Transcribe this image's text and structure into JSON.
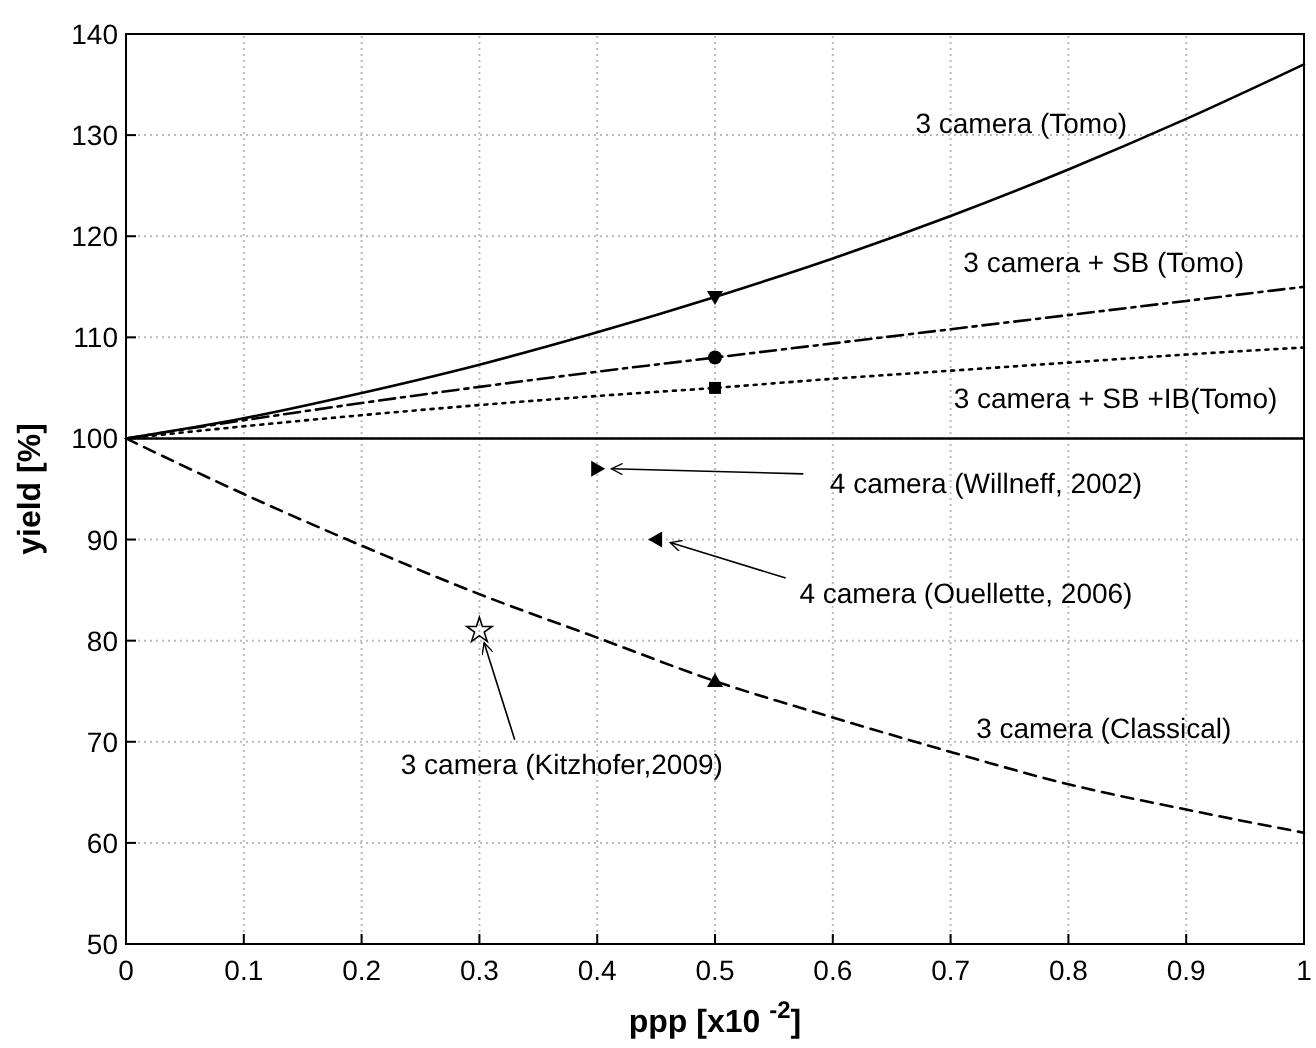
{
  "chart_data": {
    "type": "line",
    "xlabel": "ppp [x10 $^{-2}$]",
    "ylabel": "yield [%]",
    "xlim": [
      0,
      1
    ],
    "xticks": [
      0,
      0.1,
      0.2,
      0.3,
      0.4,
      0.5,
      0.6,
      0.7,
      0.8,
      0.9,
      1
    ],
    "ylim": [
      50,
      140
    ],
    "yticks": [
      50,
      60,
      70,
      80,
      90,
      100,
      110,
      120,
      130,
      140
    ],
    "grid": true,
    "x": [
      0,
      0.1,
      0.2,
      0.3,
      0.4,
      0.5,
      0.6,
      0.7,
      0.8,
      0.9,
      1
    ],
    "series": [
      {
        "name": "3 camera (Tomo)",
        "line_style": "solid",
        "color": "#000000",
        "values": [
          100,
          102,
          104.5,
          107.3,
          110.5,
          114,
          117.8,
          122,
          126.6,
          131.6,
          137
        ]
      },
      {
        "name": "3 camera + SB (Tomo)",
        "line_style": "dashdot",
        "color": "#000000",
        "values": [
          100,
          101.8,
          103.5,
          105.1,
          106.6,
          108,
          109.4,
          110.8,
          112.2,
          113.6,
          115
        ]
      },
      {
        "name": "3 camera + SB +IB(Tomo)",
        "line_style": "dotted",
        "color": "#000000",
        "values": [
          100,
          101.2,
          102.3,
          103.3,
          104.2,
          105,
          105.9,
          106.7,
          107.5,
          108.3,
          109
        ]
      },
      {
        "name": "3 camera (Classical)",
        "line_style": "dashed",
        "color": "#000000",
        "values": [
          100,
          94.5,
          89.4,
          84.6,
          80.3,
          76,
          72.4,
          69,
          65.8,
          63.3,
          61
        ]
      },
      {
        "type": "scatter",
        "marker": "triangle",
        "color": "#000000",
        "x": [
          0.5
        ],
        "values": [
          114
        ]
      },
      {
        "type": "scatter",
        "marker": "circle",
        "color": "#000000",
        "x": [
          0.5
        ],
        "values": [
          108
        ]
      },
      {
        "type": "scatter",
        "marker": "square",
        "color": "#000000",
        "x": [
          0.5
        ],
        "values": [
          105
        ]
      },
      {
        "type": "scatter",
        "marker": "triangle",
        "color": "#000000",
        "x": [
          0.5
        ],
        "values": [
          76
        ]
      },
      {
        "type": "scatter",
        "marker": "triangle",
        "color": "#000000",
        "x": [
          0.4
        ],
        "values": [
          97
        ]
      },
      {
        "type": "scatter",
        "marker": "triangle",
        "color": "#000000",
        "x": [
          0.45
        ],
        "values": [
          90
        ]
      },
      {
        "type": "scatter",
        "marker": "star",
        "color": "#000000",
        "x": [
          0.3
        ],
        "values": [
          81
        ]
      }
    ],
    "ref_lines": [
      {
        "axis": "y",
        "value": 100,
        "color": "#000000",
        "line_style": "solid"
      }
    ],
    "annotations": [
      {
        "text": "4 camera (Willneff, 2002)",
        "x": 0.4,
        "y": 97
      },
      {
        "text": "4 camera (Ouellette, 2006)",
        "x": 0.45,
        "y": 90
      },
      {
        "text": "3 camera (Kitzhofer,2009)",
        "x": 0.3,
        "y": 81
      }
    ]
  }
}
